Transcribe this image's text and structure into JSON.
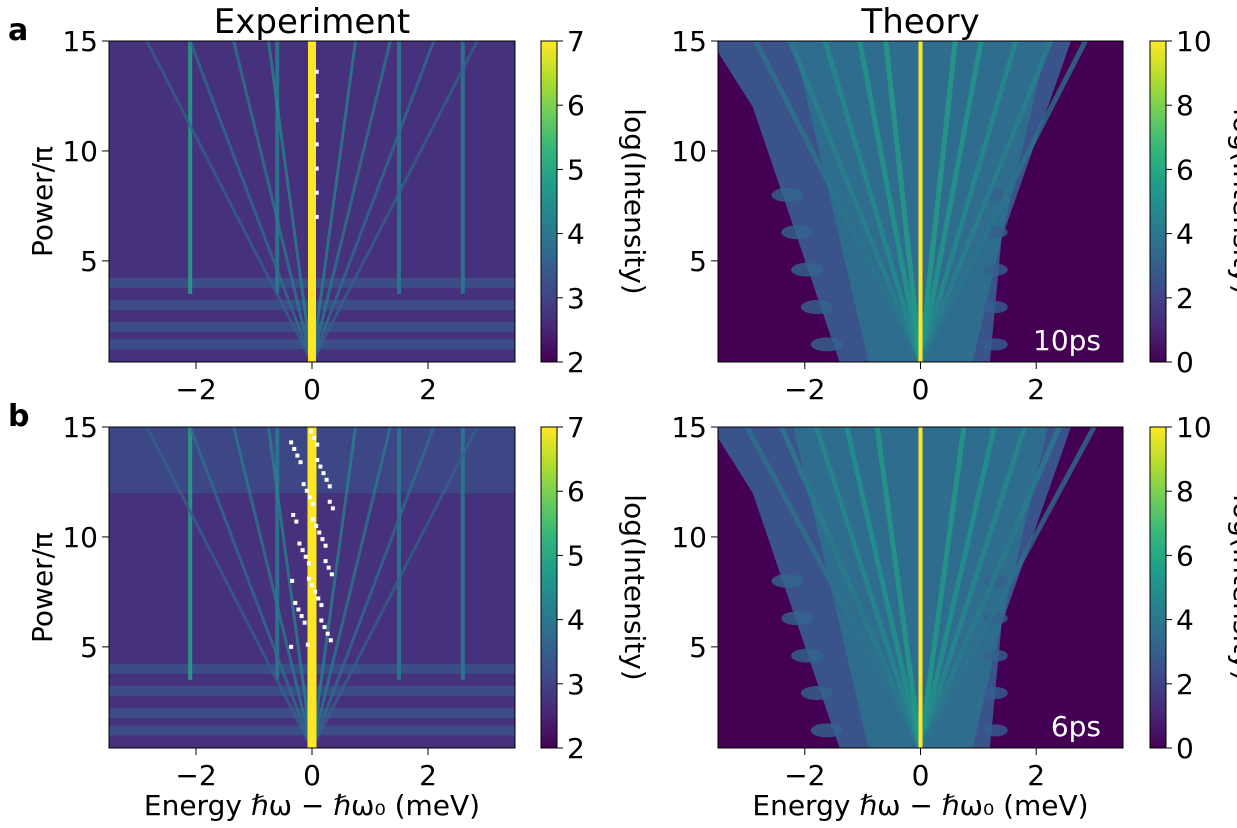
{
  "figure": {
    "panel_labels": [
      "a",
      "b"
    ],
    "column_titles": [
      "Experiment",
      "Theory"
    ]
  },
  "colormap": [
    "#440154",
    "#482878",
    "#3e4989",
    "#31688e",
    "#26828e",
    "#1f9e89",
    "#35b779",
    "#6ece58",
    "#b5de2b",
    "#fde725"
  ],
  "chart_data": [
    {
      "id": "a-experiment",
      "type": "heatmap",
      "panel": "a",
      "title": "Experiment",
      "xlabel": "",
      "ylabel": "Power/π",
      "xlim": [
        -3.5,
        3.5
      ],
      "ylim": [
        0.4,
        15
      ],
      "xticks": [
        -2,
        0,
        2
      ],
      "xtick_labels": [
        "−2",
        "0",
        "2"
      ],
      "yticks": [
        5,
        10,
        15
      ],
      "ytick_labels": [
        "5",
        "10",
        "15"
      ],
      "colorbar": {
        "label": "log(Intensity)",
        "range": [
          2,
          7
        ],
        "ticks": [
          2,
          3,
          4,
          5,
          6,
          7
        ],
        "tick_labels": [
          "2",
          "3",
          "4",
          "5",
          "6",
          "7"
        ]
      },
      "annotation": "",
      "features": {
        "central_line_energy": 0,
        "fixed_lines_energy": [
          -2.1,
          -0.6,
          1.5,
          2.6
        ],
        "fan_slopes": [
          -0.19,
          -0.14,
          -0.09,
          -0.05,
          0.05,
          0.09,
          0.14,
          0.19
        ]
      }
    },
    {
      "id": "a-theory",
      "type": "heatmap",
      "panel": "a",
      "title": "Theory",
      "xlabel": "",
      "ylabel": "",
      "xlim": [
        -3.5,
        3.5
      ],
      "ylim": [
        0.4,
        15
      ],
      "xticks": [
        -2,
        0,
        2
      ],
      "xtick_labels": [
        "−2",
        "0",
        "2"
      ],
      "yticks": [
        5,
        10,
        15
      ],
      "ytick_labels": [
        "5",
        "10",
        "15"
      ],
      "colorbar": {
        "label": "log(Intensity)",
        "range": [
          0,
          10
        ],
        "ticks": [
          0,
          2,
          4,
          6,
          8,
          10
        ],
        "tick_labels": [
          "0",
          "2",
          "4",
          "6",
          "8",
          "10"
        ]
      },
      "annotation": "10ps",
      "features": {
        "central_line_energy": 0,
        "fixed_lines_energy": [],
        "fan_slopes": [
          -0.19,
          -0.15,
          -0.11,
          -0.07,
          -0.04,
          0.04,
          0.07,
          0.11,
          0.15,
          0.19
        ]
      }
    },
    {
      "id": "b-experiment",
      "type": "heatmap",
      "panel": "b",
      "title": "",
      "xlabel": "Energy ℏω − ℏω₀ (meV)",
      "ylabel": "Power/π",
      "xlim": [
        -3.5,
        3.5
      ],
      "ylim": [
        0.4,
        15
      ],
      "xticks": [
        -2,
        0,
        2
      ],
      "xtick_labels": [
        "−2",
        "0",
        "2"
      ],
      "yticks": [
        5,
        10,
        15
      ],
      "ytick_labels": [
        "5",
        "10",
        "15"
      ],
      "colorbar": {
        "label": "log(Intensity)",
        "range": [
          2,
          7
        ],
        "ticks": [
          2,
          3,
          4,
          5,
          6,
          7
        ],
        "tick_labels": [
          "2",
          "3",
          "4",
          "5",
          "6",
          "7"
        ]
      },
      "annotation": "",
      "features": {
        "central_line_energy": 0,
        "fixed_lines_energy": [
          -2.1,
          -0.6,
          1.5,
          2.6
        ],
        "fan_slopes": [
          -0.19,
          -0.14,
          -0.09,
          -0.05,
          0.05,
          0.09,
          0.14,
          0.19
        ]
      }
    },
    {
      "id": "b-theory",
      "type": "heatmap",
      "panel": "b",
      "title": "",
      "xlabel": "Energy ℏω − ℏω₀ (meV)",
      "ylabel": "",
      "xlim": [
        -3.5,
        3.5
      ],
      "ylim": [
        0.4,
        15
      ],
      "xticks": [
        -2,
        0,
        2
      ],
      "xtick_labels": [
        "−2",
        "0",
        "2"
      ],
      "yticks": [
        5,
        10,
        15
      ],
      "ytick_labels": [
        "5",
        "10",
        "15"
      ],
      "colorbar": {
        "label": "log(Intensity)",
        "range": [
          0,
          10
        ],
        "ticks": [
          0,
          2,
          4,
          6,
          8,
          10
        ],
        "tick_labels": [
          "0",
          "2",
          "4",
          "6",
          "8",
          "10"
        ]
      },
      "annotation": "6ps",
      "features": {
        "central_line_energy": 0,
        "fixed_lines_energy": [],
        "fan_slopes": [
          -0.2,
          -0.16,
          -0.12,
          -0.085,
          -0.05,
          0.05,
          0.085,
          0.12,
          0.16,
          0.2
        ]
      }
    }
  ]
}
